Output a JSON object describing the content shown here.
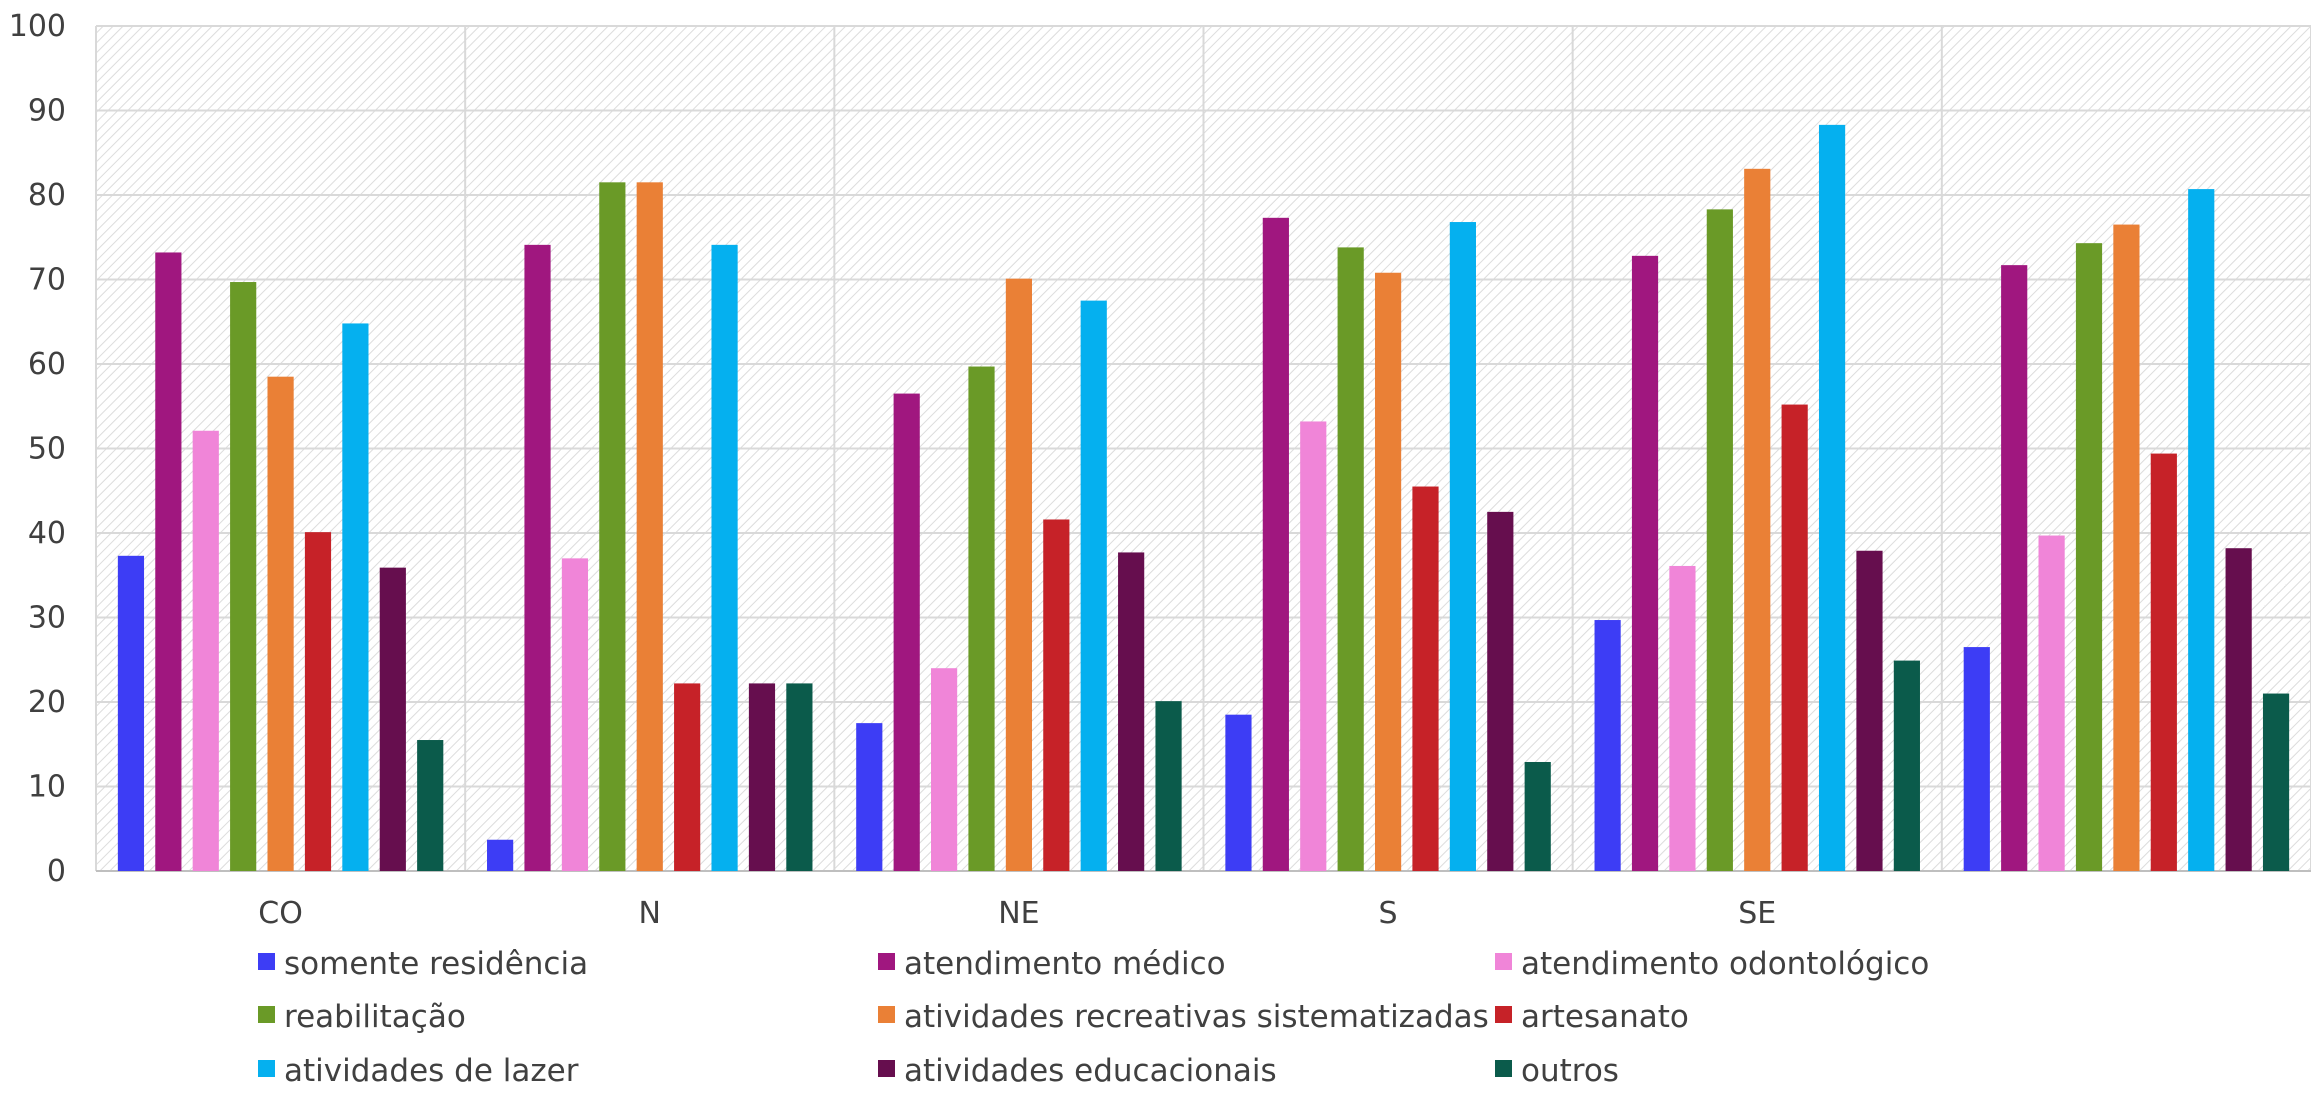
{
  "chart_data": {
    "type": "bar",
    "title": "",
    "xlabel": "",
    "ylabel": "",
    "ylim": [
      0,
      100
    ],
    "yticks": [
      0,
      10,
      20,
      30,
      40,
      50,
      60,
      70,
      80,
      90,
      100
    ],
    "grid": true,
    "legend_position": "bottom",
    "categories": [
      "CO",
      "N",
      "NE",
      "S",
      "SE",
      ""
    ],
    "series": [
      {
        "name": "somente residência",
        "color": "#3d3df5",
        "values": [
          37.3,
          3.7,
          17.5,
          18.5,
          29.7,
          26.5
        ]
      },
      {
        "name": "atendimento médico",
        "color": "#a0177f",
        "values": [
          73.2,
          74.1,
          56.5,
          77.3,
          72.8,
          71.7
        ]
      },
      {
        "name": "atendimento odontológico",
        "color": "#f085d8",
        "values": [
          52.1,
          37.0,
          24.0,
          53.2,
          36.1,
          39.7
        ]
      },
      {
        "name": "reabilitação",
        "color": "#6a9a27",
        "values": [
          69.7,
          81.5,
          59.7,
          73.8,
          78.3,
          74.3
        ]
      },
      {
        "name": "atividades recreativas sistematizadas",
        "color": "#ea8036",
        "values": [
          58.5,
          81.5,
          70.1,
          70.8,
          83.1,
          76.5
        ]
      },
      {
        "name": " artesanato",
        "color": "#c62228",
        "values": [
          40.1,
          22.2,
          41.6,
          45.5,
          55.2,
          49.4
        ]
      },
      {
        "name": "atividades de lazer",
        "color": "#05b0ef",
        "values": [
          64.8,
          74.1,
          67.5,
          76.8,
          88.3,
          80.7
        ]
      },
      {
        "name": "atividades educacionais",
        "color": "#660e4e",
        "values": [
          35.9,
          22.2,
          37.7,
          42.5,
          37.9,
          38.2
        ]
      },
      {
        "name": "outros",
        "color": "#0b5b4b",
        "values": [
          15.5,
          22.2,
          20.1,
          12.9,
          24.9,
          21.0
        ]
      }
    ]
  }
}
